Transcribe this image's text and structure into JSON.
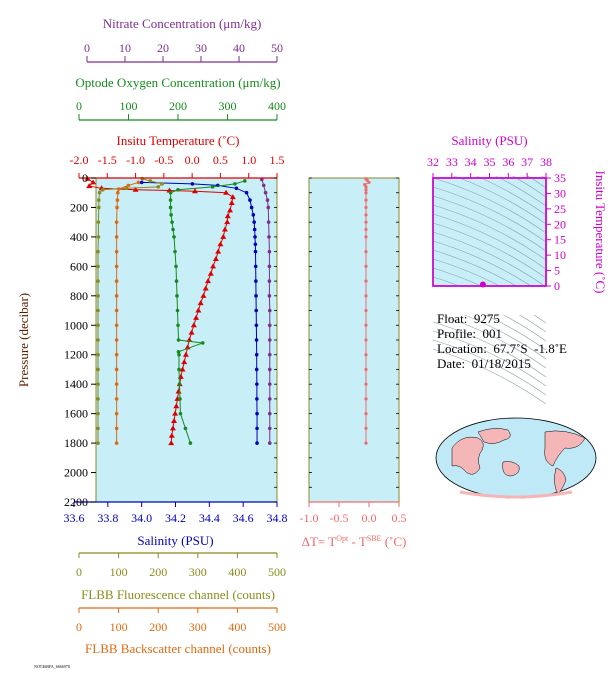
{
  "chart_data": [
    {
      "type": "scatter",
      "pressure_axis": {
        "label": "Pressure (decibar)",
        "ticks": [
          0,
          200,
          400,
          600,
          800,
          1000,
          1200,
          1400,
          1600,
          1800,
          2000,
          2200
        ],
        "ylim": [
          0,
          2200
        ],
        "reversed": true
      },
      "axes": {
        "nitrate": {
          "label": "Nitrate Concentration (μm/kg)",
          "ticks": [
            "0",
            "10",
            "20",
            "30",
            "40",
            "50"
          ],
          "range": [
            0,
            50
          ],
          "color": "#7d2e8e"
        },
        "oxygen": {
          "label": "Optode Oxygen Concentration (μm/kg)",
          "ticks": [
            "0",
            "100",
            "200",
            "300",
            "400"
          ],
          "range": [
            0,
            400
          ],
          "color": "#168a1e"
        },
        "temperature": {
          "label": "Insitu Temperature (˚C)",
          "ticks": [
            "-2.0",
            "-1.5",
            "-1.0",
            "-0.5",
            "0.0",
            "0.5",
            "1.0",
            "1.5"
          ],
          "range": [
            -2.0,
            1.5
          ],
          "color": "#dd0000"
        },
        "salinity": {
          "label": "Salinity (PSU)",
          "ticks": [
            "33.6",
            "33.8",
            "34.0",
            "34.2",
            "34.4",
            "34.6",
            "34.8"
          ],
          "range": [
            33.6,
            34.8
          ],
          "color": "#0000bb"
        },
        "fluorescence": {
          "label": "FLBB Fluorescence channel (counts)",
          "ticks": [
            "0",
            "100",
            "200",
            "300",
            "400",
            "500"
          ],
          "range": [
            0,
            500
          ],
          "color": "#8b8b1e"
        },
        "backscatter": {
          "label": "FLBB Backscatter channel (counts)",
          "ticks": [
            "0",
            "100",
            "200",
            "300",
            "400",
            "500"
          ],
          "range": [
            0,
            500
          ],
          "color": "#dd6a10"
        }
      },
      "series": [
        {
          "key": "temperature",
          "marker": "triangle",
          "color": "#dd0000",
          "points": [
            [
              -1.85,
              5
            ],
            [
              -1.75,
              30
            ],
            [
              -1.82,
              55
            ],
            [
              -1.6,
              70
            ],
            [
              -1.0,
              80
            ],
            [
              -0.4,
              85
            ],
            [
              0.05,
              90
            ],
            [
              0.6,
              100
            ],
            [
              0.72,
              130
            ],
            [
              0.7,
              170
            ],
            [
              0.67,
              220
            ],
            [
              0.63,
              260
            ],
            [
              0.62,
              300
            ],
            [
              0.58,
              350
            ],
            [
              0.55,
              400
            ],
            [
              0.5,
              450
            ],
            [
              0.46,
              500
            ],
            [
              0.42,
              550
            ],
            [
              0.37,
              600
            ],
            [
              0.33,
              650
            ],
            [
              0.28,
              700
            ],
            [
              0.24,
              750
            ],
            [
              0.2,
              800
            ],
            [
              0.15,
              850
            ],
            [
              0.11,
              900
            ],
            [
              0.07,
              950
            ],
            [
              0.03,
              1000
            ],
            [
              -0.01,
              1050
            ],
            [
              -0.05,
              1100
            ],
            [
              -0.08,
              1150
            ],
            [
              -0.11,
              1200
            ],
            [
              -0.14,
              1250
            ],
            [
              -0.17,
              1300
            ],
            [
              -0.2,
              1350
            ],
            [
              -0.22,
              1400
            ],
            [
              -0.24,
              1450
            ],
            [
              -0.26,
              1500
            ],
            [
              -0.28,
              1550
            ],
            [
              -0.3,
              1600
            ],
            [
              -0.32,
              1650
            ],
            [
              -0.34,
              1700
            ],
            [
              -0.36,
              1750
            ],
            [
              -0.37,
              1800
            ]
          ]
        },
        {
          "key": "salinity",
          "marker": "circle",
          "color": "#0000bb",
          "points": [
            [
              34.0,
              30
            ],
            [
              34.3,
              40
            ],
            [
              34.45,
              50
            ],
            [
              34.56,
              70
            ],
            [
              34.62,
              100
            ],
            [
              34.64,
              150
            ],
            [
              34.65,
              200
            ],
            [
              34.66,
              250
            ],
            [
              34.665,
              300
            ],
            [
              34.668,
              350
            ],
            [
              34.67,
              400
            ],
            [
              34.672,
              450
            ],
            [
              34.673,
              500
            ],
            [
              34.674,
              600
            ],
            [
              34.675,
              700
            ],
            [
              34.676,
              800
            ],
            [
              34.677,
              900
            ],
            [
              34.678,
              1000
            ],
            [
              34.679,
              1100
            ],
            [
              34.68,
              1200
            ],
            [
              34.68,
              1300
            ],
            [
              34.681,
              1400
            ],
            [
              34.681,
              1500
            ],
            [
              34.682,
              1600
            ],
            [
              34.682,
              1700
            ],
            [
              34.682,
              1800
            ]
          ]
        },
        {
          "key": "oxygen",
          "marker": "circle",
          "color": "#168a1e",
          "points": [
            [
              335,
              20
            ],
            [
              315,
              40
            ],
            [
              270,
              60
            ],
            [
              200,
              80
            ],
            [
              185,
              100
            ],
            [
              185,
              150
            ],
            [
              185,
              200
            ],
            [
              186,
              250
            ],
            [
              188,
              300
            ],
            [
              190,
              350
            ],
            [
              192,
              400
            ],
            [
              194,
              500
            ],
            [
              196,
              600
            ],
            [
              197,
              700
            ],
            [
              198,
              800
            ],
            [
              199,
              900
            ],
            [
              200,
              1000
            ],
            [
              201,
              1100
            ],
            [
              250,
              1120
            ],
            [
              201,
              1180
            ],
            [
              202,
              1200
            ],
            [
              202,
              1300
            ],
            [
              203,
              1400
            ],
            [
              204,
              1500
            ],
            [
              205,
              1600
            ],
            [
              215,
              1700
            ],
            [
              225,
              1800
            ]
          ]
        },
        {
          "key": "nitrate",
          "marker": "circle",
          "color": "#7d2e8e",
          "points": [
            [
              46,
              10
            ],
            [
              46.5,
              50
            ],
            [
              47,
              100
            ],
            [
              47.5,
              150
            ],
            [
              47.7,
              200
            ],
            [
              47.8,
              300
            ],
            [
              47.9,
              400
            ],
            [
              48,
              500
            ],
            [
              48,
              600
            ],
            [
              48,
              700
            ],
            [
              48,
              800
            ],
            [
              48.1,
              900
            ],
            [
              48.1,
              1000
            ],
            [
              48.1,
              1100
            ],
            [
              48.1,
              1200
            ],
            [
              48.1,
              1300
            ],
            [
              48.1,
              1400
            ],
            [
              48.1,
              1500
            ],
            [
              48.1,
              1600
            ],
            [
              48.1,
              1700
            ],
            [
              48.1,
              1800
            ]
          ]
        },
        {
          "key": "fluorescence",
          "marker": "circle",
          "color": "#8b8b1e",
          "points": [
            [
              160,
              5
            ],
            [
              180,
              20
            ],
            [
              210,
              40
            ],
            [
              200,
              60
            ],
            [
              120,
              70
            ],
            [
              60,
              80
            ],
            [
              52,
              100
            ],
            [
              50,
              150
            ],
            [
              50,
              200
            ],
            [
              49,
              300
            ],
            [
              49,
              400
            ],
            [
              48,
              500
            ],
            [
              48,
              600
            ],
            [
              48,
              700
            ],
            [
              48,
              800
            ],
            [
              48,
              900
            ],
            [
              48,
              1000
            ],
            [
              48,
              1100
            ],
            [
              48,
              1200
            ],
            [
              48,
              1300
            ],
            [
              48,
              1400
            ],
            [
              48,
              1500
            ],
            [
              48,
              1600
            ],
            [
              48,
              1700
            ],
            [
              48,
              1800
            ]
          ]
        },
        {
          "key": "backscatter",
          "marker": "circle",
          "color": "#dd6a10",
          "points": [
            [
              150,
              30
            ],
            [
              125,
              50
            ],
            [
              100,
              75
            ],
            [
              98,
              100
            ],
            [
              97,
              150
            ],
            [
              96,
              200
            ],
            [
              95,
              300
            ],
            [
              95,
              400
            ],
            [
              95,
              500
            ],
            [
              95,
              600
            ],
            [
              95,
              700
            ],
            [
              95,
              800
            ],
            [
              95,
              900
            ],
            [
              95,
              1000
            ],
            [
              95,
              1100
            ],
            [
              95,
              1200
            ],
            [
              95,
              1300
            ],
            [
              95,
              1400
            ],
            [
              95,
              1500
            ],
            [
              95,
              1600
            ],
            [
              95,
              1700
            ],
            [
              95,
              1800
            ]
          ]
        }
      ]
    },
    {
      "type": "scatter",
      "xlabel_prefix": "ΔT= T",
      "xlabel_sup1": "Opt",
      "xlabel_mid": " - T",
      "xlabel_sup2": "SBE",
      "xlabel_suffix": " (˚C)",
      "ticks": [
        "-1.0",
        "-0.5",
        "0.0",
        "0.5"
      ],
      "xlim": [
        -1.0,
        0.5
      ],
      "color": "#f06a6a",
      "points": [
        [
          0.0,
          5
        ],
        [
          0.02,
          15
        ],
        [
          0.05,
          30
        ],
        [
          -0.02,
          45
        ],
        [
          0.0,
          60
        ],
        [
          0.0,
          80
        ],
        [
          0.0,
          100
        ],
        [
          0.0,
          150
        ],
        [
          0.0,
          200
        ],
        [
          0.0,
          250
        ],
        [
          0.0,
          300
        ],
        [
          0.0,
          350
        ],
        [
          0.0,
          400
        ],
        [
          0.0,
          500
        ],
        [
          0.0,
          600
        ],
        [
          0.0,
          700
        ],
        [
          0.0,
          800
        ],
        [
          0.0,
          900
        ],
        [
          0.0,
          1000
        ],
        [
          0.0,
          1100
        ],
        [
          0.0,
          1200
        ],
        [
          0.0,
          1300
        ],
        [
          0.0,
          1400
        ],
        [
          0.0,
          1500
        ],
        [
          0.0,
          1600
        ],
        [
          0.0,
          1700
        ],
        [
          0.0,
          1800
        ]
      ]
    },
    {
      "type": "scatter",
      "xlabel": "Salinity (PSU)",
      "xticks": [
        "32",
        "33",
        "34",
        "35",
        "36",
        "37",
        "38"
      ],
      "xlim": [
        32,
        38
      ],
      "ylabel": "Insitu Temperature (˚C)",
      "yticks": [
        "0",
        "5",
        "10",
        "15",
        "20",
        "25",
        "30",
        "35"
      ],
      "ylim": [
        0,
        35
      ],
      "color": "#cc00cc",
      "points": [
        [
          34.65,
          0.5
        ]
      ]
    }
  ],
  "float_info": {
    "float": "Float:  9275",
    "profile": "Profile:  001",
    "location": "Location:  67.7˚S  -1.8˚E",
    "date": "Date:  01/18/2015"
  },
  "footer": "NOT46BFA_6666978"
}
